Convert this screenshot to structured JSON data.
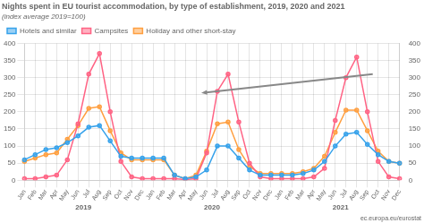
{
  "chart_data": {
    "type": "line",
    "title": "Nights spent in EU tourist accommodation, by type of establishment, 2019, 2020 and 2021",
    "subtitle": "(index average 2019=100)",
    "categories": [
      "Jan",
      "Feb",
      "Mar",
      "Apr",
      "May",
      "Jun",
      "Jul",
      "Aug",
      "Sep",
      "Oct",
      "Nov",
      "Dec",
      "Jan",
      "Feb",
      "Mar",
      "Apr",
      "May",
      "Jun",
      "Jul",
      "Aug",
      "Sep",
      "Oct",
      "Nov",
      "Dec",
      "Jan",
      "Feb",
      "Mar",
      "Apr",
      "May",
      "Jun",
      "Jul",
      "Aug",
      "Sep",
      "Oct",
      "Nov",
      "Dec"
    ],
    "series": [
      {
        "name": "Hotels and similar",
        "marker": "o",
        "values": [
          60,
          75,
          90,
          95,
          110,
          130,
          155,
          160,
          115,
          70,
          65,
          65,
          65,
          65,
          15,
          5,
          10,
          30,
          100,
          100,
          65,
          30,
          15,
          15,
          15,
          15,
          20,
          30,
          55,
          100,
          135,
          140,
          105,
          75,
          55,
          50
        ]
      },
      {
        "name": "Campsites",
        "marker": "o",
        "values": [
          5,
          5,
          10,
          15,
          60,
          165,
          310,
          370,
          200,
          55,
          10,
          5,
          5,
          5,
          5,
          2,
          5,
          80,
          260,
          310,
          170,
          50,
          10,
          5,
          5,
          5,
          5,
          10,
          35,
          175,
          300,
          360,
          200,
          55,
          10,
          5
        ]
      },
      {
        "name": "Holiday and other short-stay",
        "marker": "o",
        "values": [
          55,
          65,
          75,
          80,
          120,
          160,
          210,
          215,
          145,
          80,
          60,
          60,
          60,
          60,
          15,
          5,
          15,
          85,
          165,
          170,
          90,
          40,
          20,
          20,
          20,
          20,
          25,
          35,
          70,
          140,
          205,
          205,
          145,
          85,
          55,
          50
        ]
      }
    ],
    "ylim": [
      0,
      400
    ],
    "yticks": [
      0,
      50,
      100,
      150,
      200,
      250,
      300,
      350,
      400
    ],
    "y2lim": [
      0,
      400
    ],
    "y2ticks": [
      0,
      50,
      100,
      150,
      200,
      250,
      300,
      350,
      400
    ],
    "grid": true,
    "legend": "upper left",
    "annotations": [
      {
        "kind": "group_label",
        "text": "2019"
      },
      {
        "kind": "group_label",
        "text": "2020"
      },
      {
        "kind": "group_label",
        "text": "2021"
      },
      {
        "kind": "source",
        "text": "ec.europa.eu/eurostat"
      },
      {
        "kind": "arrow",
        "y_from": 310,
        "y_to": 255
      }
    ]
  }
}
